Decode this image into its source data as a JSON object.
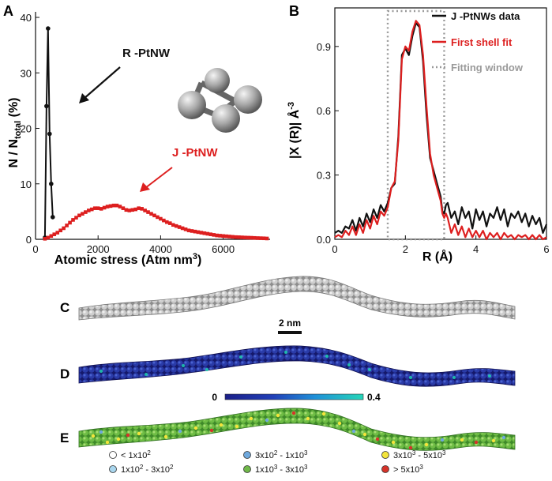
{
  "panel_labels": {
    "a": "A",
    "b": "B",
    "c": "C",
    "d": "D",
    "e": "E"
  },
  "colors": {
    "black_series": "#111111",
    "red_series": "#dd1f1f",
    "window": "#9a9a9a",
    "ball": "#b8b8b8"
  },
  "chart_data": [
    {
      "id": "A",
      "type": "line",
      "title": "",
      "xlabel_main": "Atomic stress (Atm nm",
      "xlabel_sup": "3",
      "xlabel_close": ")",
      "ylabel_main": "N / N",
      "ylabel_sub": "total",
      "ylabel_unit": " (%)",
      "xlim": [
        0,
        7500
      ],
      "ylim": [
        0,
        41
      ],
      "x_ticks": [
        0,
        2000,
        4000,
        6000
      ],
      "x_tick_labels": [
        "0",
        "2000",
        "4000",
        "6000"
      ],
      "y_ticks": [
        0,
        10,
        20,
        30,
        40
      ],
      "y_tick_labels": [
        "0",
        "10",
        "20",
        "30",
        "40"
      ],
      "annotations": {
        "r_label": "R -PtNW",
        "j_label": "J -PtNW"
      },
      "series": [
        {
          "name": "R -PtNW",
          "color": "#111111",
          "marker": "circle",
          "x": [
            300,
            350,
            400,
            450,
            500,
            550
          ],
          "y": [
            0.3,
            24,
            38,
            19,
            10,
            4
          ]
        },
        {
          "name": "J -PtNW",
          "color": "#dd1f1f",
          "marker": "square",
          "x": [
            300,
            400,
            500,
            600,
            700,
            800,
            900,
            1000,
            1100,
            1200,
            1300,
            1400,
            1500,
            1600,
            1700,
            1800,
            1900,
            2000,
            2100,
            2200,
            2300,
            2400,
            2500,
            2600,
            2700,
            2800,
            2900,
            3000,
            3100,
            3200,
            3300,
            3400,
            3500,
            3600,
            3700,
            3800,
            3900,
            4000,
            4100,
            4200,
            4300,
            4400,
            4500,
            4600,
            4700,
            4800,
            4900,
            5000,
            5100,
            5200,
            5300,
            5400,
            5500,
            5600,
            5700,
            5800,
            5900,
            6000,
            6100,
            6200,
            6300,
            6400,
            6500,
            6600,
            6700,
            6800,
            6900,
            7000,
            7100,
            7200,
            7300,
            7400
          ],
          "y": [
            0.1,
            0.3,
            0.6,
            0.9,
            1.2,
            1.6,
            2.0,
            2.5,
            3.0,
            3.5,
            3.9,
            4.3,
            4.6,
            4.9,
            5.2,
            5.4,
            5.6,
            5.6,
            5.5,
            5.7,
            5.9,
            6.0,
            6.1,
            6.1,
            5.9,
            5.6,
            5.3,
            5.2,
            5.3,
            5.4,
            5.6,
            5.5,
            5.2,
            4.9,
            4.6,
            4.3,
            4.0,
            3.7,
            3.4,
            3.1,
            2.9,
            2.6,
            2.4,
            2.2,
            2.0,
            1.8,
            1.6,
            1.5,
            1.4,
            1.3,
            1.2,
            1.1,
            1.0,
            0.9,
            0.8,
            0.7,
            0.65,
            0.6,
            0.55,
            0.5,
            0.45,
            0.4,
            0.38,
            0.35,
            0.32,
            0.3,
            0.28,
            0.25,
            0.22,
            0.2,
            0.18,
            0.15
          ]
        }
      ]
    },
    {
      "id": "B",
      "type": "line",
      "title": "",
      "xlabel": "R (Å)",
      "ylabel_main": "|X (R)| Å",
      "ylabel_sup": "-3",
      "xlim": [
        0,
        6
      ],
      "ylim": [
        0,
        1.08
      ],
      "x_ticks": [
        0,
        2,
        4,
        6
      ],
      "x_tick_labels": [
        "0",
        "2",
        "4",
        "6"
      ],
      "y_ticks": [
        0,
        0.3,
        0.6,
        0.9
      ],
      "y_tick_labels": [
        "0.0",
        "0.3",
        "0.6",
        "0.9"
      ],
      "legend": [
        {
          "label": "J -PtNWs data",
          "style": "solid-black"
        },
        {
          "label": "First shell fit",
          "style": "solid-red"
        },
        {
          "label": "Fitting window",
          "style": "dotted-gray"
        }
      ],
      "fitting_window": [
        1.5,
        3.1
      ],
      "series": [
        {
          "name": "J -PtNWs data",
          "color": "#111111",
          "x": [
            0,
            0.1,
            0.2,
            0.3,
            0.4,
            0.5,
            0.6,
            0.7,
            0.8,
            0.9,
            1.0,
            1.1,
            1.2,
            1.3,
            1.4,
            1.5,
            1.6,
            1.7,
            1.8,
            1.9,
            2.0,
            2.1,
            2.2,
            2.3,
            2.4,
            2.5,
            2.6,
            2.7,
            2.8,
            2.9,
            3.0,
            3.05,
            3.1,
            3.15,
            3.2,
            3.3,
            3.4,
            3.5,
            3.6,
            3.7,
            3.8,
            3.9,
            4.0,
            4.1,
            4.2,
            4.3,
            4.4,
            4.5,
            4.6,
            4.7,
            4.8,
            4.9,
            5.0,
            5.1,
            5.2,
            5.3,
            5.4,
            5.5,
            5.6,
            5.7,
            5.8,
            5.9,
            6.0
          ],
          "y": [
            0.03,
            0.04,
            0.03,
            0.06,
            0.05,
            0.09,
            0.04,
            0.1,
            0.06,
            0.12,
            0.08,
            0.14,
            0.1,
            0.16,
            0.13,
            0.17,
            0.24,
            0.26,
            0.48,
            0.86,
            0.89,
            0.86,
            0.95,
            1.01,
            0.99,
            0.83,
            0.58,
            0.38,
            0.32,
            0.26,
            0.2,
            0.13,
            0.12,
            0.16,
            0.17,
            0.1,
            0.13,
            0.07,
            0.15,
            0.1,
            0.13,
            0.05,
            0.14,
            0.09,
            0.13,
            0.06,
            0.12,
            0.1,
            0.15,
            0.09,
            0.14,
            0.06,
            0.12,
            0.1,
            0.13,
            0.08,
            0.12,
            0.06,
            0.11,
            0.07,
            0.1,
            0.03,
            0.07
          ]
        },
        {
          "name": "First shell fit",
          "color": "#dd1f1f",
          "x": [
            0,
            0.1,
            0.2,
            0.3,
            0.4,
            0.5,
            0.6,
            0.7,
            0.8,
            0.9,
            1.0,
            1.1,
            1.2,
            1.3,
            1.4,
            1.5,
            1.6,
            1.7,
            1.8,
            1.9,
            2.0,
            2.1,
            2.2,
            2.3,
            2.4,
            2.5,
            2.6,
            2.7,
            2.8,
            2.9,
            3.0,
            3.05,
            3.1,
            3.15,
            3.2,
            3.3,
            3.4,
            3.5,
            3.6,
            3.7,
            3.8,
            3.9,
            4.0,
            4.1,
            4.2,
            4.3,
            4.4,
            4.5,
            4.6,
            4.7,
            4.8,
            4.9,
            5.0,
            5.1,
            5.2,
            5.3,
            5.4,
            5.5,
            5.6,
            5.7,
            5.8,
            5.9,
            6.0
          ],
          "y": [
            0.01,
            0.02,
            0.01,
            0.04,
            0.02,
            0.06,
            0.02,
            0.07,
            0.03,
            0.09,
            0.05,
            0.11,
            0.07,
            0.13,
            0.11,
            0.15,
            0.24,
            0.27,
            0.46,
            0.84,
            0.9,
            0.88,
            0.97,
            1.02,
            1.0,
            0.86,
            0.62,
            0.4,
            0.3,
            0.24,
            0.18,
            0.12,
            0.1,
            0.12,
            0.1,
            0.03,
            0.07,
            0.02,
            0.06,
            0.01,
            0.05,
            0.01,
            0.04,
            0.01,
            0.04,
            0.0,
            0.03,
            0.01,
            0.03,
            0.0,
            0.03,
            0.01,
            0.02,
            0.0,
            0.02,
            0.01,
            0.02,
            0.0,
            0.02,
            0.0,
            0.02,
            0.0,
            0.01
          ]
        }
      ]
    }
  ],
  "panel_c": {
    "scalebar_label": "2 nm"
  },
  "panel_d": {
    "colorbar_min": "0",
    "colorbar_max": "0.4"
  },
  "panel_e": {
    "legend": [
      {
        "color": "#ffffff",
        "base": "< 1x10",
        "exp": "2",
        "rest": ""
      },
      {
        "color": "#a9d6ee",
        "base": "1x10",
        "exp": "2",
        "rest": " - 3x10",
        "exp2": "2"
      },
      {
        "color": "#6fa8dc",
        "base": "3x10",
        "exp": "2",
        "rest": " - 1x10",
        "exp2": "3"
      },
      {
        "color": "#70b84a",
        "base": "1x10",
        "exp": "3",
        "rest": " - 3x10",
        "exp2": "3"
      },
      {
        "color": "#f3e43b",
        "base": "3x10",
        "exp": "3",
        "rest": " - 5x10",
        "exp2": "3"
      },
      {
        "color": "#d6332a",
        "base": "> 5x10",
        "exp": "3",
        "rest": ""
      }
    ]
  }
}
